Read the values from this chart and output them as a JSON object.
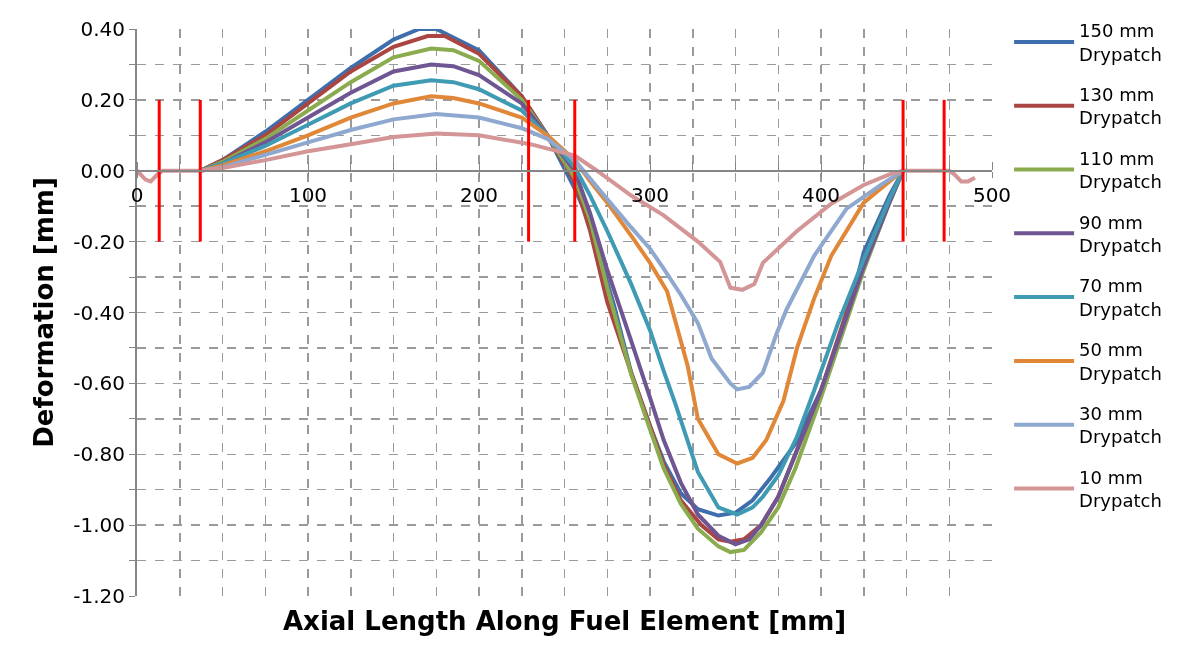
{
  "chart_data": {
    "type": "line",
    "xlabel": "Axial Length Along Fuel Element [mm]",
    "ylabel": "Deformation [mm]",
    "xlim": [
      0,
      500
    ],
    "xticks": [
      0,
      100,
      200,
      300,
      400,
      500
    ],
    "ylim": [
      -1.2,
      0.4
    ],
    "yticks": [
      {
        "value": -1.2,
        "label": "-1.20"
      },
      {
        "value": -1.0,
        "label": "-1.00"
      },
      {
        "value": -0.8,
        "label": "-0.80"
      },
      {
        "value": -0.6,
        "label": "-0.60"
      },
      {
        "value": -0.4,
        "label": "-0.40"
      },
      {
        "value": -0.2,
        "label": "-0.20"
      },
      {
        "value": 0,
        "label": "0.00"
      },
      {
        "value": 0.2,
        "label": "0.20"
      },
      {
        "value": 0.4,
        "label": "0.40"
      }
    ],
    "grid": true,
    "legend": "right",
    "marker": "none",
    "line_style": "solid",
    "series": [
      {
        "name": "150 mm Drypatch",
        "color": "#3e6fac",
        "x": [
          37,
          50,
          75,
          100,
          125,
          150,
          165,
          175,
          200,
          225,
          240,
          256,
          265,
          279,
          289,
          300,
          308,
          318,
          328,
          340,
          350,
          360,
          370,
          385,
          400,
          415,
          425,
          440,
          448
        ],
        "values": [
          0,
          0.03,
          0.11,
          0.2,
          0.29,
          0.37,
          0.4,
          0.4,
          0.34,
          0.21,
          0.1,
          -0.05,
          -0.15,
          -0.38,
          -0.57,
          -0.72,
          -0.82,
          -0.91,
          -0.955,
          -0.973,
          -0.965,
          -0.93,
          -0.87,
          -0.77,
          -0.62,
          -0.42,
          -0.23,
          -0.07,
          0
        ]
      },
      {
        "name": "130 mm Drypatch",
        "color": "#ab4542",
        "x": [
          37,
          50,
          75,
          100,
          125,
          150,
          170,
          180,
          200,
          225,
          240,
          256,
          265,
          275,
          289,
          300,
          308,
          318,
          330,
          340,
          347,
          355,
          365,
          375,
          400,
          425,
          440,
          448
        ],
        "values": [
          0,
          0.03,
          0.1,
          0.19,
          0.28,
          0.35,
          0.38,
          0.38,
          0.33,
          0.21,
          0.1,
          -0.03,
          -0.17,
          -0.37,
          -0.57,
          -0.72,
          -0.83,
          -0.93,
          -1.0,
          -1.04,
          -1.047,
          -1.04,
          -1.0,
          -0.92,
          -0.62,
          -0.25,
          -0.08,
          0
        ]
      },
      {
        "name": "110 mm Drypatch",
        "color": "#8aab4e",
        "x": [
          37,
          50,
          75,
          100,
          125,
          150,
          172,
          185,
          200,
          225,
          240,
          256,
          265,
          275,
          289,
          300,
          308,
          318,
          328,
          340,
          347,
          355,
          365,
          375,
          385,
          400,
          425,
          440,
          448
        ],
        "values": [
          0,
          0.025,
          0.09,
          0.17,
          0.25,
          0.32,
          0.345,
          0.34,
          0.31,
          0.2,
          0.1,
          -0.02,
          -0.14,
          -0.33,
          -0.575,
          -0.73,
          -0.84,
          -0.94,
          -1.01,
          -1.06,
          -1.076,
          -1.07,
          -1.02,
          -0.95,
          -0.84,
          -0.64,
          -0.28,
          -0.09,
          0
        ]
      },
      {
        "name": "90 mm Drypatch",
        "color": "#6f5592",
        "x": [
          37,
          50,
          75,
          100,
          125,
          150,
          172,
          185,
          200,
          225,
          240,
          256,
          265,
          275,
          289,
          300,
          308,
          318,
          328,
          340,
          350,
          358,
          365,
          375,
          400,
          425,
          440,
          448
        ],
        "values": [
          0,
          0.02,
          0.08,
          0.15,
          0.22,
          0.28,
          0.3,
          0.295,
          0.27,
          0.19,
          0.1,
          0,
          -0.12,
          -0.28,
          -0.48,
          -0.64,
          -0.76,
          -0.88,
          -0.97,
          -1.03,
          -1.054,
          -1.04,
          -1.0,
          -0.92,
          -0.62,
          -0.27,
          -0.09,
          0
        ]
      },
      {
        "name": "70 mm Drypatch",
        "color": "#3e9bb3",
        "x": [
          37,
          50,
          75,
          100,
          125,
          150,
          172,
          185,
          200,
          225,
          240,
          256,
          265,
          275,
          289,
          300,
          308,
          315,
          328,
          340,
          351,
          360,
          366,
          375,
          386,
          396,
          410,
          425,
          440,
          448
        ],
        "values": [
          0,
          0.02,
          0.07,
          0.13,
          0.19,
          0.24,
          0.255,
          0.25,
          0.23,
          0.17,
          0.1,
          0.01,
          -0.07,
          -0.17,
          -0.32,
          -0.45,
          -0.565,
          -0.66,
          -0.85,
          -0.95,
          -0.97,
          -0.95,
          -0.92,
          -0.86,
          -0.75,
          -0.62,
          -0.43,
          -0.25,
          -0.08,
          0
        ]
      },
      {
        "name": "50 mm Drypatch",
        "color": "#e08738",
        "x": [
          37,
          50,
          75,
          100,
          125,
          150,
          172,
          185,
          200,
          225,
          240,
          256,
          265,
          275,
          290,
          300,
          310,
          322,
          328,
          340,
          351,
          360,
          368,
          378,
          386,
          396,
          406,
          425,
          440,
          448
        ],
        "values": [
          0,
          0.015,
          0.055,
          0.1,
          0.15,
          0.19,
          0.21,
          0.205,
          0.19,
          0.15,
          0.1,
          0.03,
          -0.03,
          -0.09,
          -0.19,
          -0.26,
          -0.34,
          -0.55,
          -0.7,
          -0.8,
          -0.826,
          -0.81,
          -0.76,
          -0.65,
          -0.5,
          -0.36,
          -0.24,
          -0.09,
          -0.03,
          0
        ]
      },
      {
        "name": "30 mm Drypatch",
        "color": "#8ea8cf",
        "x": [
          37,
          50,
          75,
          100,
          125,
          150,
          175,
          200,
          225,
          240,
          256,
          275,
          289,
          300,
          308,
          318,
          328,
          336,
          347,
          351,
          358,
          366,
          374,
          380,
          396,
          415,
          435,
          448
        ],
        "values": [
          0,
          0.01,
          0.045,
          0.08,
          0.115,
          0.145,
          0.16,
          0.15,
          0.12,
          0.09,
          0.03,
          -0.08,
          -0.16,
          -0.22,
          -0.276,
          -0.35,
          -0.43,
          -0.53,
          -0.6,
          -0.617,
          -0.61,
          -0.57,
          -0.46,
          -0.39,
          -0.24,
          -0.107,
          -0.04,
          0
        ]
      },
      {
        "name": "10 mm Drypatch",
        "color": "#d39595",
        "x": [
          0,
          5,
          8,
          12,
          15,
          37,
          50,
          75,
          100,
          125,
          150,
          175,
          200,
          230,
          256,
          269,
          289,
          308,
          328,
          341,
          347,
          354,
          361,
          366,
          386,
          406,
          425,
          440,
          448,
          460,
          475,
          478,
          482,
          486,
          490
        ],
        "values": [
          0,
          -0.025,
          -0.03,
          -0.01,
          0,
          0,
          0.008,
          0.03,
          0.055,
          0.075,
          0.095,
          0.105,
          0.1,
          0.075,
          0.043,
          0,
          -0.07,
          -0.126,
          -0.2,
          -0.257,
          -0.33,
          -0.336,
          -0.32,
          -0.26,
          -0.17,
          -0.093,
          -0.04,
          -0.01,
          0,
          0,
          0,
          -0.01,
          -0.03,
          -0.03,
          -0.02
        ]
      },
      {
        "color": "#ff0000",
        "x": [
          13,
          13
        ],
        "values": [
          0.2,
          -0.2
        ]
      },
      {
        "color": "#ff0000",
        "x": [
          37,
          37
        ],
        "values": [
          0.2,
          -0.2
        ]
      },
      {
        "color": "#ff0000",
        "x": [
          229,
          229
        ],
        "values": [
          0.2,
          -0.2
        ]
      },
      {
        "color": "#ff0000",
        "x": [
          256,
          256
        ],
        "values": [
          0.2,
          -0.2
        ]
      },
      {
        "color": "#ff0000",
        "x": [
          448,
          448
        ],
        "values": [
          0.2,
          -0.2
        ]
      },
      {
        "color": "#ff0000",
        "x": [
          472,
          472
        ],
        "values": [
          0.2,
          -0.2
        ]
      }
    ]
  }
}
